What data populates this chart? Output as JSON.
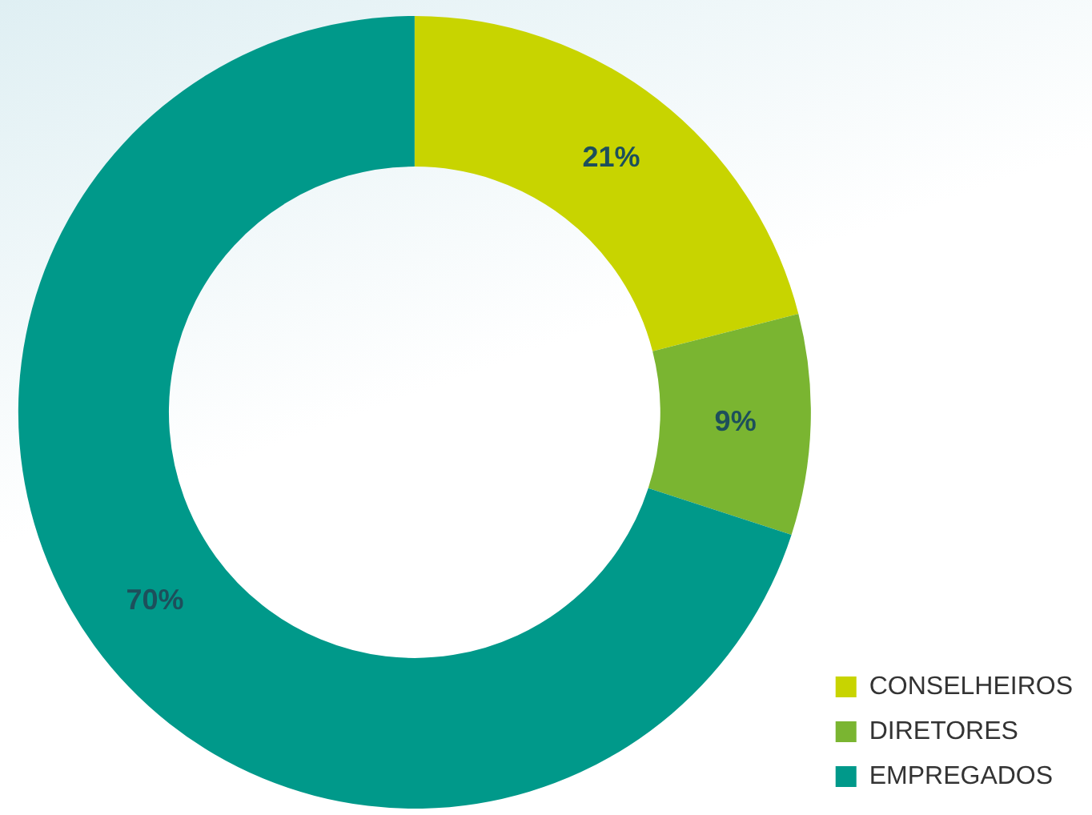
{
  "chart_data": {
    "type": "donut",
    "categories": [
      "CONSELHEIROS",
      "DIRETORES",
      "EMPREGADOS"
    ],
    "values": [
      21,
      9,
      70
    ],
    "colors": [
      "#c8d400",
      "#7ab531",
      "#00998a"
    ],
    "value_labels": [
      "21%",
      "9%",
      "70%"
    ],
    "legend": "bottom right"
  }
}
